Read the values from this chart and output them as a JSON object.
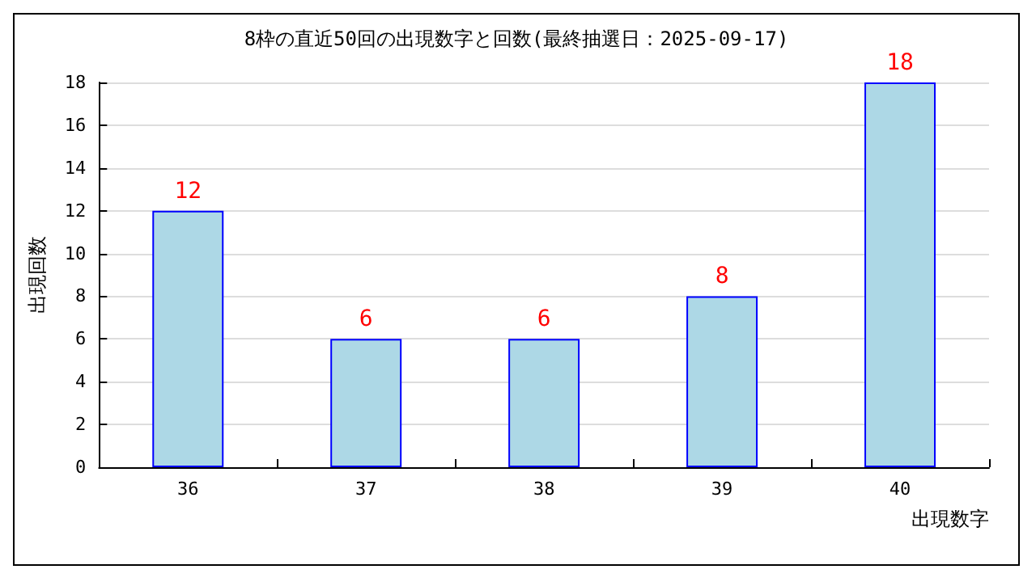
{
  "chart_data": {
    "type": "bar",
    "title": "8枠の直近50回の出現数字と回数(最終抽選日：2025-09-17)",
    "xlabel": "出現数字",
    "ylabel": "出現回数",
    "categories": [
      "36",
      "37",
      "38",
      "39",
      "40"
    ],
    "values": [
      12,
      6,
      6,
      8,
      18
    ],
    "color": "#add8e6",
    "ylim": [
      0,
      18
    ],
    "yticks": [
      0,
      2,
      4,
      6,
      8,
      10,
      12,
      14,
      16,
      18
    ],
    "grid": "y",
    "data_labels": true
  }
}
